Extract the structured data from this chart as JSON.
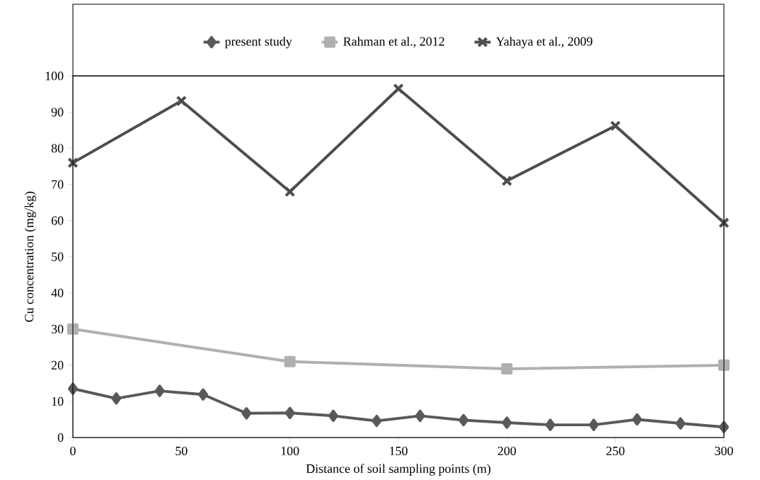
{
  "chart_data": {
    "type": "line",
    "xlabel": "Distance of soil sampling points (m)",
    "ylabel": "Cu concentration (mg/kg)",
    "series": [
      {
        "name": "present study",
        "color": "#595959",
        "marker": "diamond",
        "x": [
          0,
          20,
          40,
          60,
          80,
          100,
          120,
          140,
          160,
          180,
          200,
          220,
          240,
          260,
          280,
          300
        ],
        "values": [
          13.5,
          10.8,
          12.9,
          11.9,
          6.7,
          6.8,
          6.0,
          4.6,
          6.0,
          4.8,
          4.1,
          3.5,
          3.5,
          5.0,
          3.9,
          2.9
        ]
      },
      {
        "name": "Rahman et al., 2012",
        "color": "#b0b0b0",
        "marker": "square",
        "x": [
          0,
          100,
          200,
          300
        ],
        "values": [
          30,
          21,
          19,
          20
        ]
      },
      {
        "name": "Yahaya et al., 2009",
        "color": "#4d4d4d",
        "marker": "cross",
        "x": [
          0,
          50,
          100,
          150,
          200,
          250,
          300
        ],
        "values": [
          76,
          93.1,
          68,
          96.5,
          71,
          86.2,
          59.4
        ]
      }
    ],
    "xlim": [
      0,
      300
    ],
    "xticks": [
      0,
      50,
      100,
      150,
      200,
      250,
      300
    ],
    "ylim": [
      0,
      100
    ],
    "yticks": [
      0,
      10,
      20,
      30,
      40,
      50,
      60,
      70,
      80,
      90,
      100
    ],
    "grid": false,
    "legend": "top",
    "line_style": "solid"
  }
}
